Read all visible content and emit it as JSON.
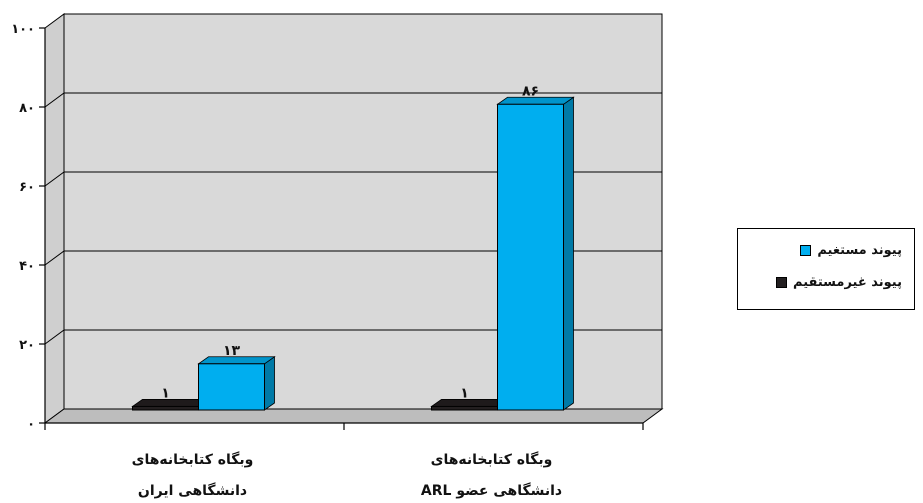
{
  "chart_data": {
    "type": "bar",
    "categories": [
      [
        "وبگاه کتابخانه‌های",
        "دانشگاهی ایران"
      ],
      [
        "وبگاه کتابخانه‌های",
        "دانشگاهی عضو ARL"
      ]
    ],
    "series": [
      {
        "name": "پیوند غیرمستقیم",
        "color": "#231f20",
        "values": [
          1,
          1
        ],
        "labels": [
          "۱",
          "۱"
        ]
      },
      {
        "name": "پیوند مستغیم",
        "color": "#00aeef",
        "values": [
          13,
          86
        ],
        "labels": [
          "۱۳",
          "۸۶"
        ]
      }
    ],
    "yticks": [
      0,
      20,
      40,
      60,
      80,
      100
    ],
    "ytick_labels": [
      "۰",
      "۲۰",
      "۴۰",
      "۶۰",
      "۸۰",
      "۱۰۰"
    ],
    "ylim": [
      0,
      100
    ],
    "grid": true,
    "legend_position": "right",
    "plot_background": "#d9d9d9"
  }
}
